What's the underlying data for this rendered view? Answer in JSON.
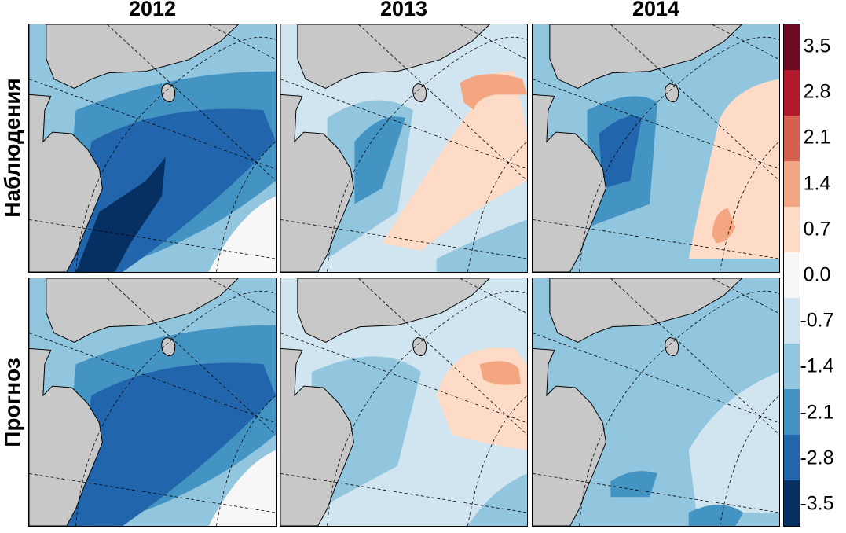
{
  "chart_data": {
    "type": "heatmap",
    "columns": [
      "2012",
      "2013",
      "2014"
    ],
    "rows": [
      "Наблюдения",
      "Прогноз"
    ],
    "colorbar": {
      "ticks": [
        "3.5",
        "2.8",
        "2.1",
        "1.4",
        "0.7",
        "0.0",
        "-0.7",
        "-1.4",
        "-2.1",
        "-2.8",
        "-3.5"
      ],
      "colors": [
        "#6b0a22",
        "#b3192c",
        "#d6604d",
        "#f4a582",
        "#fddbc7",
        "#f7f7f7",
        "#d1e5f0",
        "#92c5de",
        "#4393c3",
        "#2166ac",
        "#053061"
      ]
    },
    "land_color": "#c8c8c8",
    "panels": [
      {
        "row": "Наблюдения",
        "col": "2012",
        "pattern": "strong-negative-southwest",
        "levels": {
          "base": -1.4,
          "band": -2.1,
          "core": -2.8,
          "peak": -3.5,
          "southeast": 0.0
        }
      },
      {
        "row": "Наблюдения",
        "col": "2013",
        "pattern": "positive-ring-east",
        "levels": {
          "base": -0.7,
          "band": -1.4,
          "core": -2.1,
          "ring": 0.7,
          "peak": 1.4
        }
      },
      {
        "row": "Наблюдения",
        "col": "2014",
        "pattern": "weak-positive-east",
        "levels": {
          "base": -1.4,
          "band": -2.1,
          "core": -2.8,
          "east": 0.7,
          "peak": 1.4
        }
      },
      {
        "row": "Прогноз",
        "col": "2012",
        "pattern": "strong-negative-southwest",
        "levels": {
          "base": -1.4,
          "band": -2.1,
          "core": -2.8,
          "southeast": 0.0
        }
      },
      {
        "row": "Прогноз",
        "col": "2013",
        "pattern": "positive-blob-east",
        "levels": {
          "base": -0.7,
          "band": -1.4,
          "ring": 0.7,
          "peak": 1.4
        }
      },
      {
        "row": "Прогноз",
        "col": "2014",
        "pattern": "uniform-negative",
        "levels": {
          "base": -1.4,
          "core": -2.1,
          "east": -0.7
        }
      }
    ]
  }
}
